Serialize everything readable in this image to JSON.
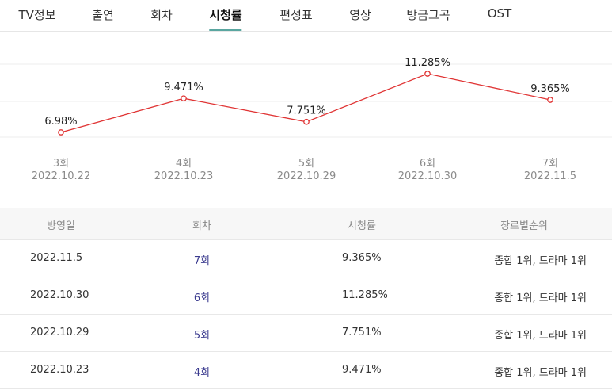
{
  "tabs": [
    {
      "label": "TV정보",
      "active": false
    },
    {
      "label": "출연",
      "active": false
    },
    {
      "label": "회차",
      "active": false
    },
    {
      "label": "시청률",
      "active": true
    },
    {
      "label": "편성표",
      "active": false
    },
    {
      "label": "영상",
      "active": false
    },
    {
      "label": "방금그곡",
      "active": false
    },
    {
      "label": "OST",
      "active": false
    }
  ],
  "chart_data": {
    "type": "line",
    "categories": [
      {
        "episode": "3회",
        "date": "2022.10.22"
      },
      {
        "episode": "4회",
        "date": "2022.10.23"
      },
      {
        "episode": "5회",
        "date": "2022.10.29"
      },
      {
        "episode": "6회",
        "date": "2022.10.30"
      },
      {
        "episode": "7회",
        "date": "2022.11.5"
      }
    ],
    "values": [
      6.98,
      9.471,
      7.751,
      11.285,
      9.365
    ],
    "labels": [
      "6.98%",
      "9.471%",
      "7.751%",
      "11.285%",
      "9.365%"
    ],
    "grid": true,
    "colors": {
      "line": "#e03434",
      "gridline": "#eeeeee",
      "marker_fill": "#ffffff"
    }
  },
  "table": {
    "headers": [
      "방영일",
      "회차",
      "시청률",
      "장르별순위"
    ],
    "rows": [
      {
        "date": "2022.11.5",
        "episode": "7회",
        "rating": "9.365%",
        "rank": "종합 1위, 드라마 1위"
      },
      {
        "date": "2022.10.30",
        "episode": "6회",
        "rating": "11.285%",
        "rank": "종합 1위, 드라마 1위"
      },
      {
        "date": "2022.10.29",
        "episode": "5회",
        "rating": "7.751%",
        "rank": "종합 1위, 드라마 1위"
      },
      {
        "date": "2022.10.23",
        "episode": "4회",
        "rating": "9.471%",
        "rank": "종합 1위, 드라마 1위"
      }
    ]
  }
}
